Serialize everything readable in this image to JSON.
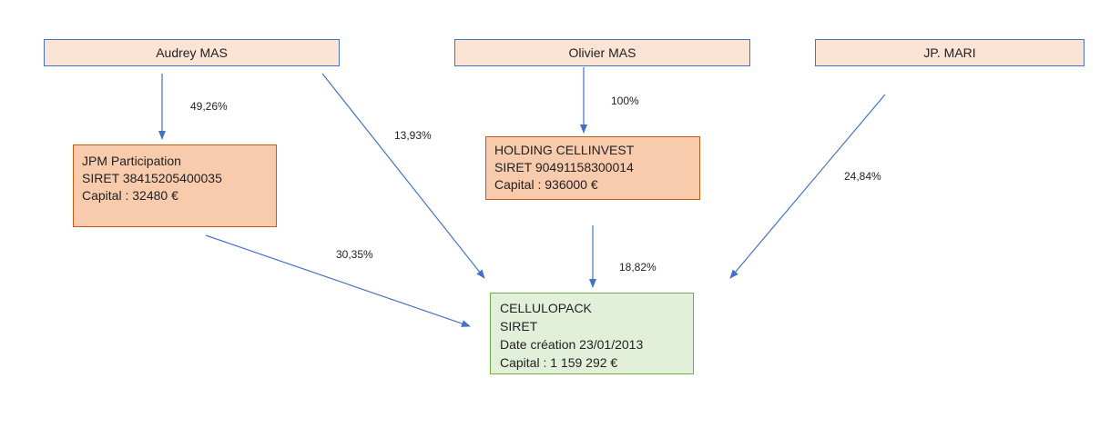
{
  "persons": {
    "audrey": "Audrey MAS",
    "olivier": "Olivier MAS",
    "jp": "JP. MARI"
  },
  "jpm": {
    "name": "JPM Participation",
    "siret": "SIRET 38415205400035",
    "capital": "Capital : 32480 €"
  },
  "holding": {
    "name": "HOLDING CELLINVEST",
    "siret": "SIRET 90491158300014",
    "capital": "Capital : 936000 €"
  },
  "cellulopack": {
    "name": "CELLULOPACK",
    "siret": "SIRET",
    "creation": "Date création 23/01/2013",
    "capital": "Capital : 1 159 292 €"
  },
  "links": {
    "audrey_jpm": "49,26%",
    "audrey_cellulopack": "13,93%",
    "olivier_holding": "100%",
    "jpm_cellulopack": "30,35%",
    "holding_cellulopack": "18,82%",
    "jp_cellulopack": "24,84%"
  },
  "colors": {
    "arrow": "#4472c4",
    "person_fill": "#fbe3d6",
    "company_fill": "#f8cbad",
    "target_fill": "#e2f0d9"
  }
}
